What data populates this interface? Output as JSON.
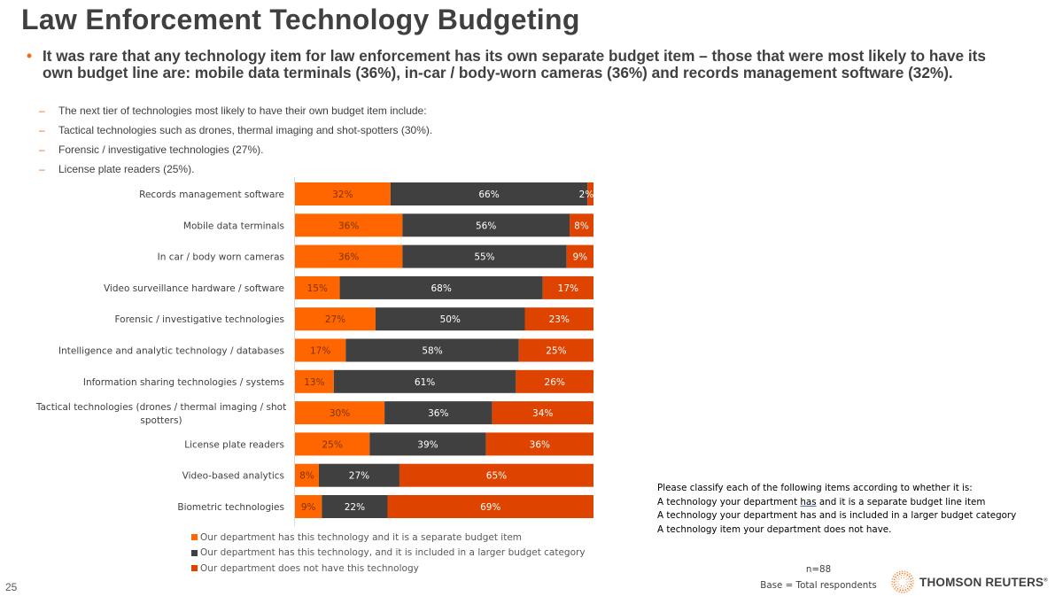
{
  "slide": {
    "title": "Law Enforcement Technology Budgeting",
    "bullet_main": "It was rare that any technology item for law enforcement has its own separate budget item – those that were most likely to have its own budget line are: mobile data terminals (36%), in-car / body-worn cameras (36%) and records management software (32%).",
    "sub_bullets": [
      "The next tier of technologies most likely to have their own budget item include:",
      "Tactical technologies such as drones, thermal imaging and shot-spotters (30%).",
      "Forensic / investigative technologies (27%).",
      "License plate readers (25%)."
    ],
    "question_note": {
      "lines": [
        "Please classify each of the following items according to whether it is:",
        "A technology your department ",
        "has",
        " and it is a separate budget line item",
        "A technology your department has and is included in a larger budget category",
        "A technology item your department does not have."
      ]
    },
    "base": {
      "n": "n=88",
      "label": "Base = Total respondents"
    },
    "brand": "THOMSON REUTERS",
    "brand_mark": "®",
    "page_number": "25",
    "colors": {
      "separate": "#FF6600",
      "included": "#404040",
      "not_have": "#DE4300",
      "accent": "#F26A1B"
    }
  },
  "chart_data": {
    "type": "bar",
    "orientation": "horizontal",
    "stacked": true,
    "stack_total": 100,
    "categories": [
      "Records management software",
      "Mobile data terminals",
      "In car / body worn cameras",
      "Video surveillance hardware / software",
      "Forensic / investigative technologies",
      "Intelligence and analytic technology / databases",
      "Information sharing technologies / systems",
      "Tactical technologies (drones / thermal imaging / shot spotters)",
      "License plate readers",
      "Video-based analytics",
      "Biometric technologies"
    ],
    "category_lines": [
      [
        "Records management software"
      ],
      [
        "Mobile data terminals"
      ],
      [
        "In car / body worn cameras"
      ],
      [
        "Video surveillance hardware / software"
      ],
      [
        "Forensic / investigative technologies"
      ],
      [
        "Intelligence and analytic technology / databases"
      ],
      [
        "Information sharing technologies / systems"
      ],
      [
        "Tactical technologies (drones / thermal imaging / shot",
        "spotters)"
      ],
      [
        "License plate readers"
      ],
      [
        "Video-based analytics"
      ],
      [
        "Biometric technologies"
      ]
    ],
    "series": [
      {
        "name": "Our department has this technology and it is a separate budget item",
        "color": "#FF6600",
        "label_color": "#7F3300",
        "values": [
          32,
          36,
          36,
          15,
          27,
          17,
          13,
          30,
          25,
          8,
          9
        ]
      },
      {
        "name": "Our department has this technology, and it is included in a larger budget category",
        "color": "#404040",
        "label_color": "#FFFFFF",
        "values": [
          66,
          56,
          55,
          68,
          50,
          58,
          61,
          36,
          39,
          27,
          22
        ]
      },
      {
        "name": "Our department does not have this technology",
        "color": "#DE4300",
        "label_color": "#FFFFFF",
        "values": [
          2,
          8,
          9,
          17,
          23,
          25,
          26,
          34,
          36,
          65,
          69
        ]
      }
    ],
    "value_suffix": "%",
    "xlim": [
      0,
      100
    ],
    "axes_visible": false,
    "grid": false,
    "legend_position": "bottom-left",
    "title": "",
    "xlabel": "",
    "ylabel": ""
  }
}
